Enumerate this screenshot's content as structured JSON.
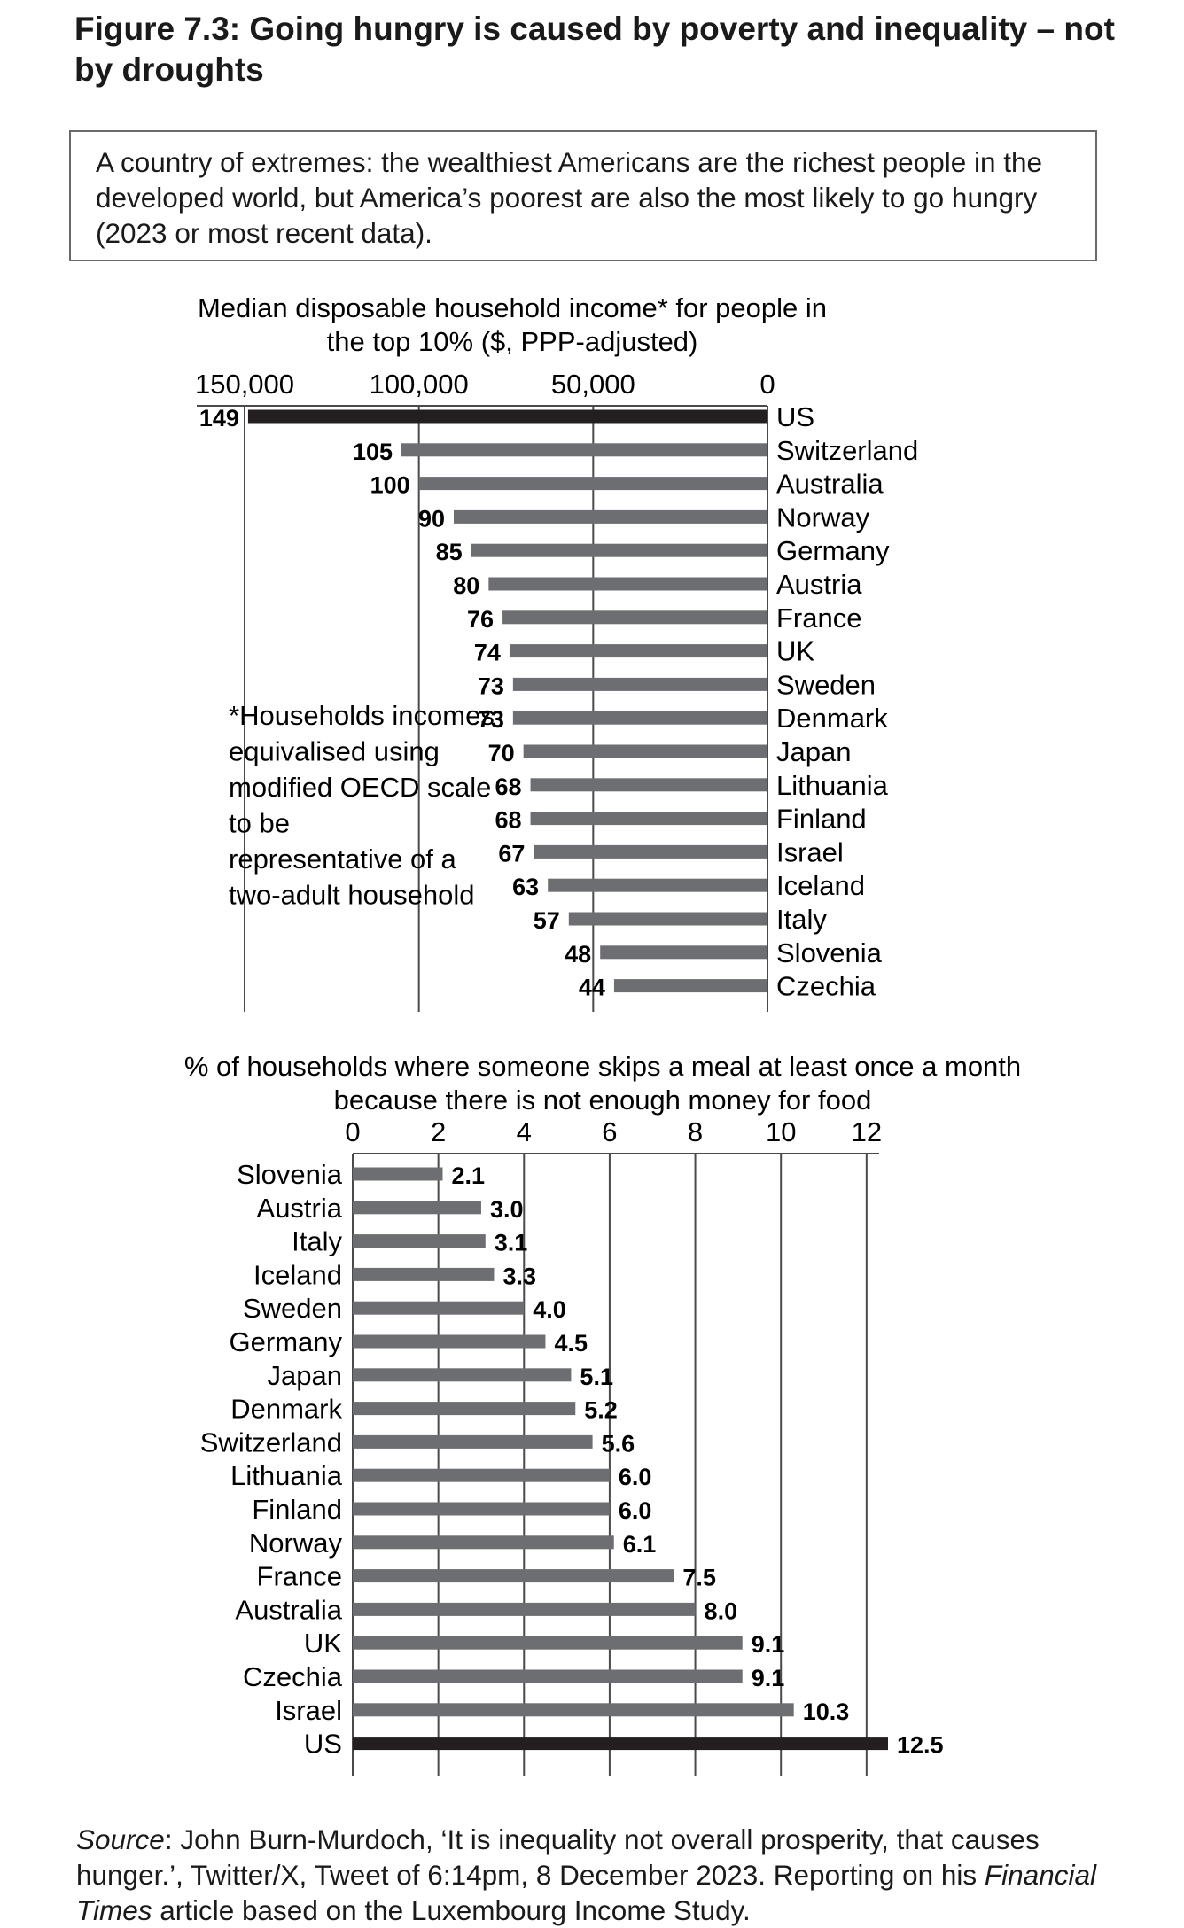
{
  "title": "Figure 7.3: Going hungry is caused by poverty and inequality – not by droughts",
  "intro": "A country of extremes: the wealthiest Americans are the richest people in the developed world, but America’s poorest are also the most likely to go hungry (2023 or most recent data).",
  "footnote": "*Households incomes equivalised using modified OECD scale to be representative of a two-adult household",
  "source": {
    "label": "Source",
    "text1": ": John Burn-Murdoch, ‘It is inequality not overall prosperity, that causes hunger.’, Twitter/X, Tweet of 6:14pm, 8 December 2023. Reporting on his ",
    "italic": "Financial Times",
    "text2": " article based on the Luxembourg Income Study."
  },
  "colors": {
    "highlight": "#231f20",
    "bar": "#6d6e71",
    "axis": "#4a4a4a",
    "grid": "#4a4a4a"
  },
  "chart_data": [
    {
      "type": "bar",
      "orientation": "horizontal",
      "direction": "right-to-left",
      "title": "Median disposable household income* for people in the top 10% ($, PPP-adjusted)",
      "xlim": [
        0,
        150000
      ],
      "ticks": [
        150000,
        100000,
        50000,
        0
      ],
      "tick_labels": [
        "150,000",
        "100,000",
        "50,000",
        "0"
      ],
      "grid": true,
      "label_position": "right",
      "categories": [
        "US",
        "Switzerland",
        "Australia",
        "Norway",
        "Germany",
        "Austria",
        "France",
        "UK",
        "Sweden",
        "Denmark",
        "Japan",
        "Lithuania",
        "Finland",
        "Israel",
        "Iceland",
        "Italy",
        "Slovenia",
        "Czechia"
      ],
      "values": [
        149000,
        105000,
        100000,
        90000,
        85000,
        80000,
        76000,
        74000,
        73000,
        73000,
        70000,
        68000,
        68000,
        67000,
        63000,
        57000,
        48000,
        44000
      ],
      "data_labels": [
        "149",
        "105",
        "100",
        "90",
        "85",
        "80",
        "76",
        "74",
        "73",
        "73",
        "70",
        "68",
        "68",
        "67",
        "63",
        "57",
        "48",
        "44"
      ],
      "highlight": "US"
    },
    {
      "type": "bar",
      "orientation": "horizontal",
      "title": "% of households where someone skips a meal at least once a month because there is not enough money for food",
      "xlim": [
        0,
        12.5
      ],
      "ticks": [
        0,
        2,
        4,
        6,
        8,
        10,
        12
      ],
      "tick_labels": [
        "0",
        "2",
        "4",
        "6",
        "8",
        "10",
        "12"
      ],
      "grid": true,
      "label_position": "left",
      "categories": [
        "Slovenia",
        "Austria",
        "Italy",
        "Iceland",
        "Sweden",
        "Germany",
        "Japan",
        "Denmark",
        "Switzerland",
        "Lithuania",
        "Finland",
        "Norway",
        "France",
        "Australia",
        "UK",
        "Czechia",
        "Israel",
        "US"
      ],
      "values": [
        2.1,
        3.0,
        3.1,
        3.3,
        4.0,
        4.5,
        5.1,
        5.2,
        5.6,
        6.0,
        6.0,
        6.1,
        7.5,
        8.0,
        9.1,
        9.1,
        10.3,
        12.5
      ],
      "data_labels": [
        "2.1",
        "3.0",
        "3.1",
        "3.3",
        "4.0",
        "4.5",
        "5.1",
        "5.2",
        "5.6",
        "6.0",
        "6.0",
        "6.1",
        "7.5",
        "8.0",
        "9.1",
        "9.1",
        "10.3",
        "12.5"
      ],
      "highlight": "US"
    }
  ]
}
